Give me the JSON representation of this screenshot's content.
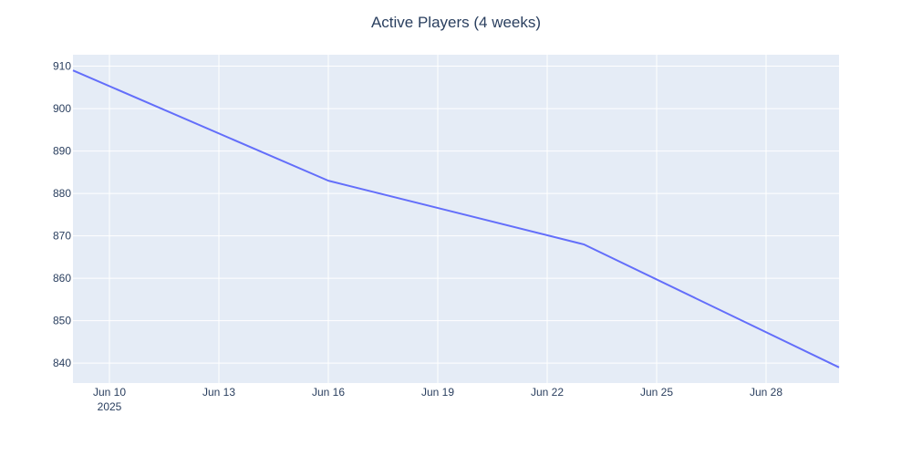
{
  "chart_data": {
    "type": "line",
    "title": "Active Players (4 weeks)",
    "xlabel": "",
    "ylabel": "",
    "x_tick_labels": [
      "Jun 10",
      "Jun 13",
      "Jun 16",
      "Jun 19",
      "Jun 22",
      "Jun 25",
      "Jun 28"
    ],
    "x_year_label": "2025",
    "x_ticks": [
      "2025-06-10",
      "2025-06-13",
      "2025-06-16",
      "2025-06-19",
      "2025-06-22",
      "2025-06-25",
      "2025-06-28"
    ],
    "xlim": [
      "2025-06-09",
      "2025-06-30"
    ],
    "y_tick_labels": [
      "840",
      "850",
      "860",
      "870",
      "880",
      "890",
      "900",
      "910"
    ],
    "y_ticks": [
      840,
      850,
      860,
      870,
      880,
      890,
      900,
      910
    ],
    "ylim": [
      835.3,
      912.7
    ],
    "grid": true,
    "legend": false,
    "series": [
      {
        "x": [
          "2025-06-09",
          "2025-06-16",
          "2025-06-23",
          "2025-06-30"
        ],
        "y": [
          909,
          883,
          868,
          839
        ],
        "color": "#636efa"
      }
    ],
    "colors": {
      "plot_background": "#e5ecf6",
      "grid": "#ffffff",
      "text": "#2a3f5f",
      "line": "#636efa"
    }
  }
}
